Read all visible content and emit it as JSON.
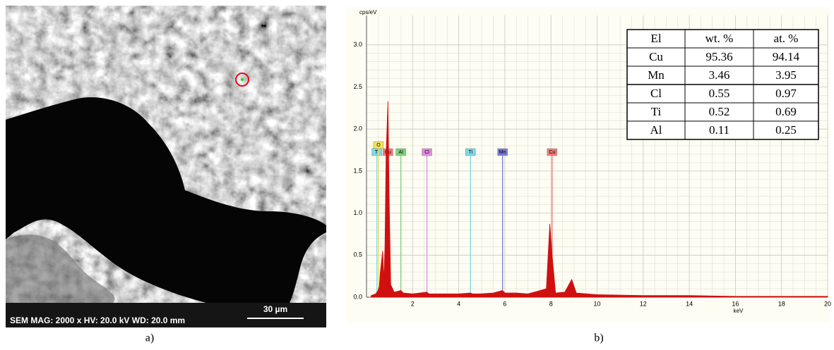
{
  "sem": {
    "info_bar": "SEM  MAG: 2000 x  HV: 20.0 kV  WD: 20.0 mm",
    "scale_label": "30 µm",
    "caption": "a)"
  },
  "chart_data": {
    "type": "area",
    "caption": "b)",
    "y_label": "cps/eV",
    "x_label": "keV",
    "xlim": [
      0,
      20
    ],
    "xticks": [
      2,
      4,
      6,
      8,
      10,
      12,
      14,
      16,
      18,
      20
    ],
    "ylim": [
      0,
      3.35
    ],
    "yticks": [
      {
        "value": 0,
        "label": "0.0"
      },
      0.5,
      {
        "value": 1,
        "label": "1.0"
      },
      1.5,
      {
        "value": 2,
        "label": "2.0"
      },
      2.5,
      {
        "value": 3,
        "label": "3.0"
      }
    ],
    "grid": true,
    "series": [
      {
        "color": "#d01010",
        "x": [
          0.2,
          0.4,
          0.5,
          0.52,
          0.55,
          0.6,
          0.7,
          0.75,
          0.8,
          0.85,
          0.93,
          0.98,
          1.05,
          1.2,
          1.49,
          1.6,
          2.0,
          2.62,
          2.7,
          3.0,
          4.0,
          4.51,
          4.6,
          4.93,
          5.5,
          5.9,
          6.0,
          6.49,
          7.0,
          7.8,
          7.95,
          8.05,
          8.2,
          8.6,
          8.9,
          9.1,
          10,
          12,
          14,
          16,
          18,
          20
        ],
        "values": [
          0.02,
          0.04,
          0.08,
          0.1,
          0.12,
          0.3,
          0.55,
          0.2,
          0.6,
          1.7,
          2.33,
          1.2,
          0.15,
          0.06,
          0.08,
          0.05,
          0.04,
          0.06,
          0.04,
          0.04,
          0.04,
          0.05,
          0.04,
          0.04,
          0.05,
          0.08,
          0.05,
          0.05,
          0.04,
          0.1,
          0.87,
          0.5,
          0.05,
          0.06,
          0.21,
          0.05,
          0.03,
          0.02,
          0.02,
          0.01,
          0.01,
          0.01
        ]
      }
    ],
    "markers": [
      {
        "label": "Ti",
        "x": 0.45,
        "color": "#7fd8e8"
      },
      {
        "label": "O",
        "x": 0.52,
        "color": "#f2e35a"
      },
      {
        "label": "Cu",
        "x": 0.93,
        "color": "#f07a7a"
      },
      {
        "label": "Al",
        "x": 1.49,
        "color": "#7ed07a"
      },
      {
        "label": "Cl",
        "x": 2.62,
        "color": "#e08ae0"
      },
      {
        "label": "Ti",
        "x": 4.51,
        "color": "#7fd8e8"
      },
      {
        "label": "Mn",
        "x": 5.9,
        "color": "#7a7ad8"
      },
      {
        "label": "Cu",
        "x": 8.05,
        "color": "#f07a7a"
      }
    ]
  },
  "table": {
    "header": [
      "El",
      "wt. %",
      "at. %"
    ],
    "rows": [
      [
        "Cu",
        "95.36",
        "94.14"
      ],
      [
        "Mn",
        "3.46",
        "3.95"
      ],
      [
        "Cl",
        "0.55",
        "0.97"
      ],
      [
        "Ti",
        "0.52",
        "0.69"
      ],
      [
        "Al",
        "0.11",
        "0.25"
      ]
    ]
  }
}
